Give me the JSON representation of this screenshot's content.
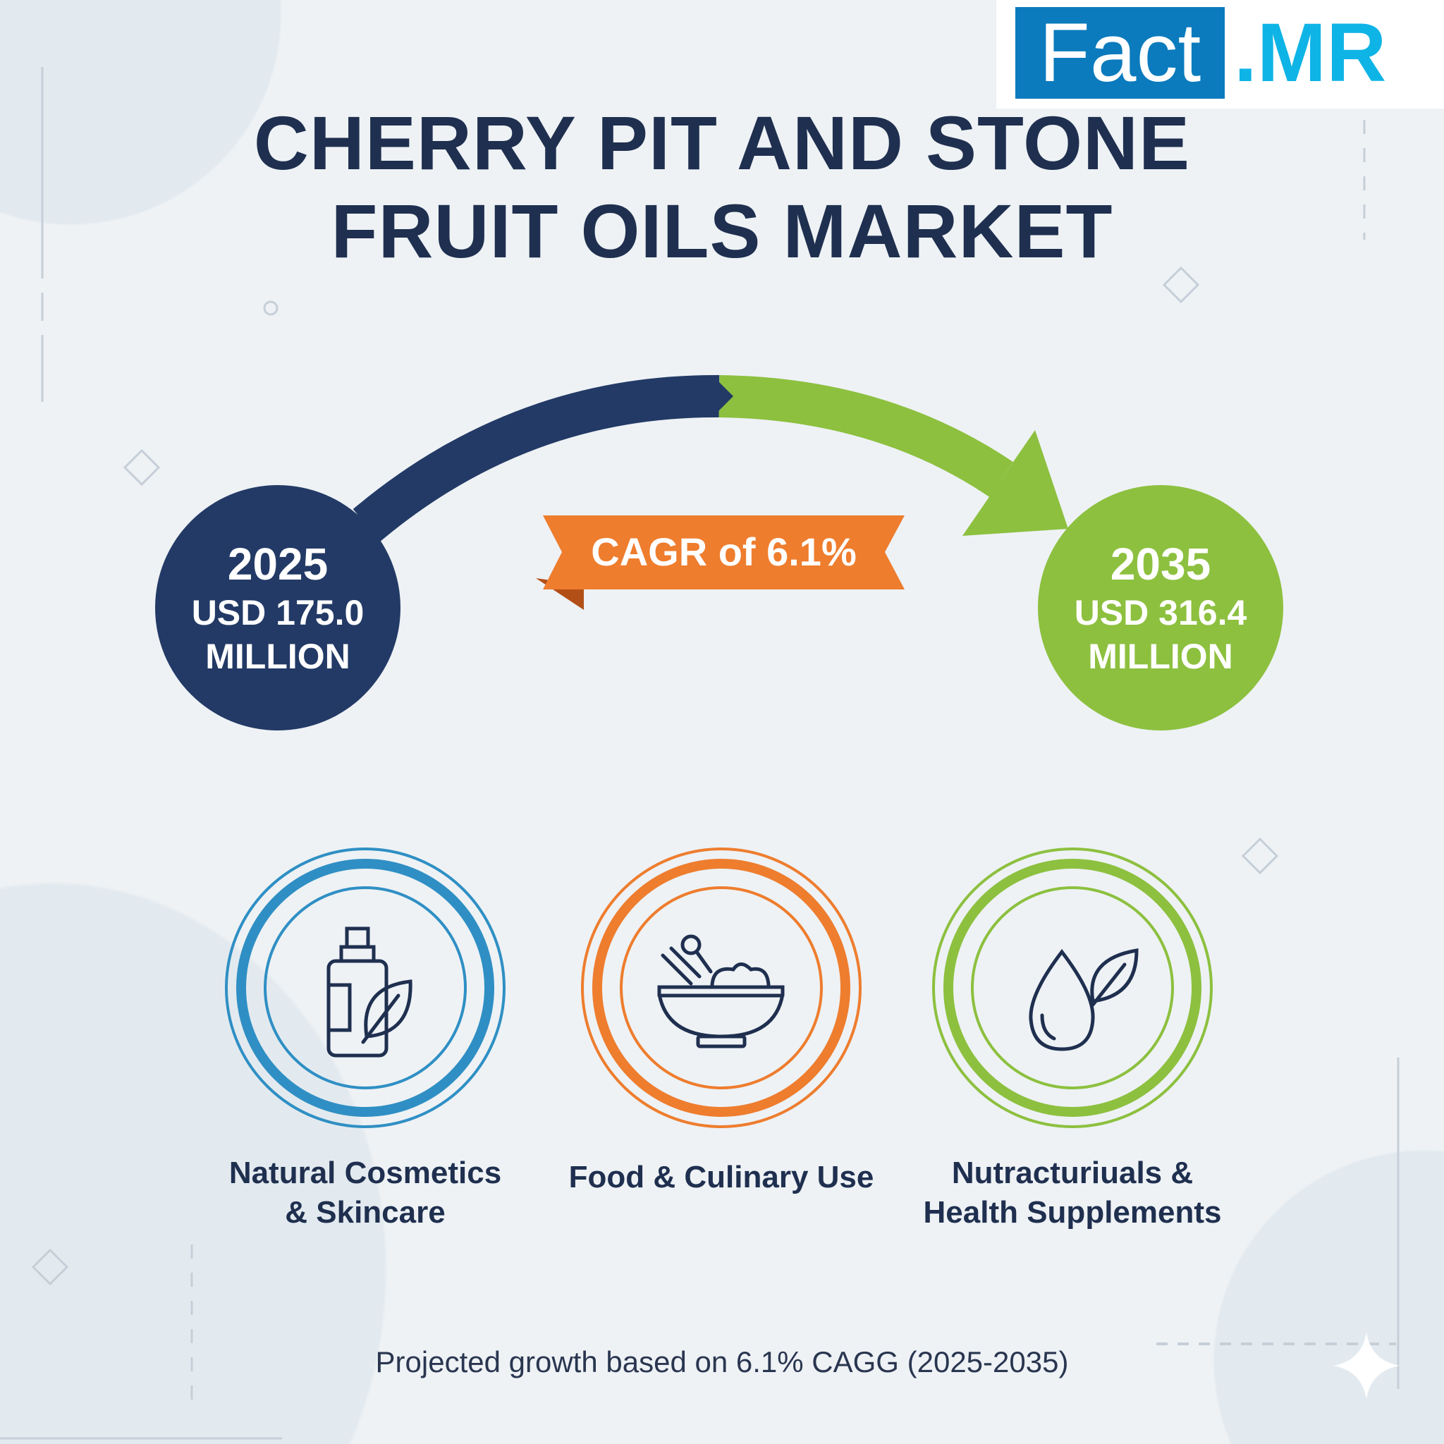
{
  "brand": {
    "logo_left": "Fact",
    "logo_right": ".MR",
    "colors": {
      "logo_box": "#0b7bbd",
      "logo_text": "#0fb4e6"
    }
  },
  "title": {
    "line1": "CHERRY PIT AND STONE",
    "line2": "FRUIT OILS MARKET"
  },
  "start": {
    "year": "2025",
    "value": "USD 175.0",
    "unit": "MILLION",
    "color": "#233a66"
  },
  "end": {
    "year": "2035",
    "value": "USD 316.4",
    "unit": "MILLION",
    "color": "#8dc03f"
  },
  "cagr": {
    "label": "CAGR of 6.1%",
    "color": "#ee7d2e"
  },
  "segments": [
    {
      "line1": "Natural Cosmetics",
      "line2": "& Skincare",
      "icon": "cosmetic-bottle-leaf-icon",
      "color": "#2f8fc4"
    },
    {
      "line1": "Food & Culinary Use",
      "line2": "",
      "icon": "food-bowl-icon",
      "color": "#ee7d2e"
    },
    {
      "line1": "Nutracturiuals &",
      "line2": "Health Supplements",
      "icon": "oil-drop-leaf-icon",
      "color": "#8dc03f"
    }
  ],
  "footer": "Projected growth based on 6.1% CAGG (2025-2035)"
}
